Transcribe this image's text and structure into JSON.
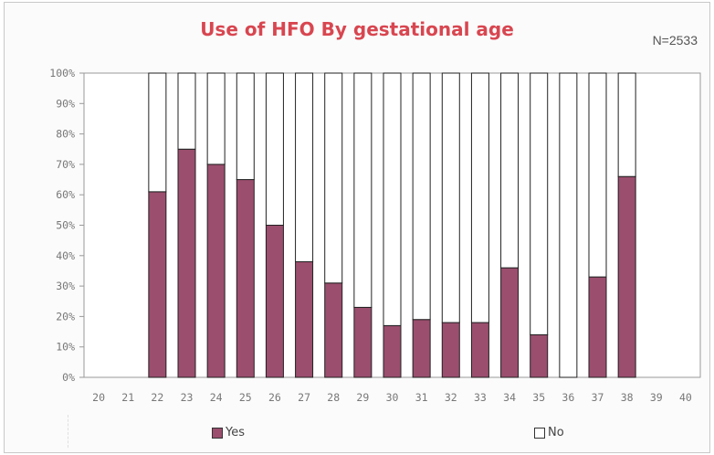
{
  "chart_data": {
    "type": "bar",
    "stacked": true,
    "title": "Use of HFO By gestational age",
    "annotation": "N=2533",
    "categories": [
      "20",
      "21",
      "22",
      "23",
      "24",
      "25",
      "26",
      "27",
      "28",
      "29",
      "30",
      "31",
      "32",
      "33",
      "34",
      "35",
      "36",
      "37",
      "38",
      "39",
      "40"
    ],
    "series": [
      {
        "name": "Yes",
        "color": "#9b4e6e",
        "values": [
          null,
          null,
          61,
          75,
          70,
          65,
          50,
          38,
          31,
          23,
          17,
          19,
          18,
          18,
          36,
          14,
          0,
          33,
          66,
          null,
          null
        ]
      },
      {
        "name": "No",
        "color": "#ffffff",
        "values": [
          null,
          null,
          39,
          25,
          30,
          35,
          50,
          62,
          69,
          77,
          83,
          81,
          82,
          82,
          64,
          86,
          100,
          67,
          34,
          null,
          null
        ]
      }
    ],
    "yticks": [
      "0%",
      "10%",
      "20%",
      "30%",
      "40%",
      "50%",
      "60%",
      "70%",
      "80%",
      "90%",
      "100%"
    ],
    "ylim": [
      0,
      100
    ],
    "legend_position": "bottom",
    "grid": false
  }
}
